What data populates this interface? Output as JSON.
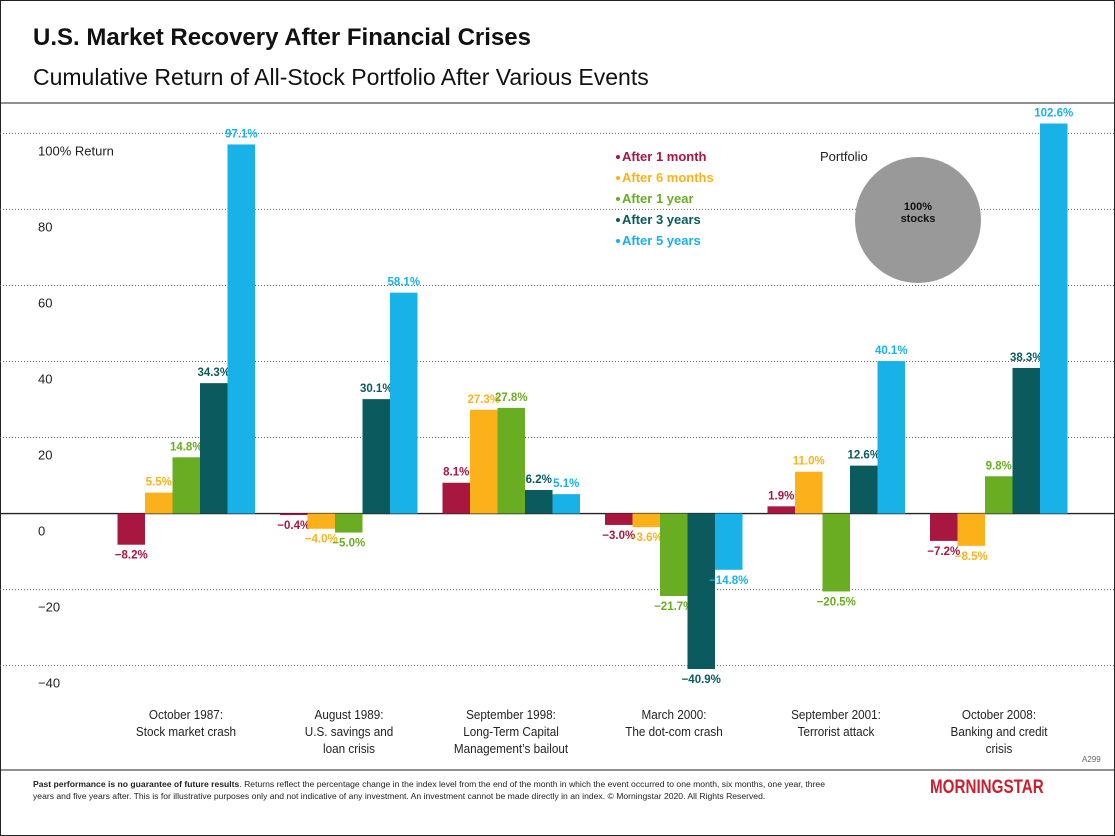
{
  "chart_data": {
    "type": "bar",
    "title": "U.S. Market Recovery After Financial Crises",
    "subtitle": "Cumulative Return of All-Stock Portfolio After Various Events",
    "categories": [
      "October 1987:\nStock market crash",
      "August 1989:\nU.S. savings and\nloan crisis",
      "September 1998:\nLong-Term Capital\nManagement’s bailout",
      "March 2000:\nThe dot-com crash",
      "September 2001:\nTerrorist attack",
      "October 2008:\nBanking and credit\ncrisis"
    ],
    "series": [
      {
        "name": "After 1 month",
        "color": "#a8173f",
        "values": [
          -8.2,
          -0.4,
          8.1,
          -3.0,
          1.9,
          -7.2
        ],
        "value_labels": [
          "−8.2%",
          "−0.4%",
          "8.1%",
          "−3.0%",
          "1.9%",
          "−7.2%"
        ]
      },
      {
        "name": "After 6 months",
        "color": "#fbb21a",
        "values": [
          5.5,
          -4.0,
          27.3,
          -3.6,
          11.0,
          -8.5
        ],
        "value_labels": [
          "5.5%",
          "−4.0%",
          "27.3%",
          "−3.6%",
          "11.0%",
          "−8.5%"
        ]
      },
      {
        "name": "After 1 year",
        "color": "#69ad22",
        "values": [
          14.8,
          -5.0,
          27.8,
          -21.7,
          -20.5,
          9.8
        ],
        "value_labels": [
          "14.8%",
          "−5.0%",
          "27.8%",
          "−21.7%",
          "−20.5%",
          "9.8%"
        ]
      },
      {
        "name": "After 3 years",
        "color": "#0b5a5e",
        "values": [
          34.3,
          30.1,
          6.2,
          -40.9,
          12.6,
          38.3
        ],
        "value_labels": [
          "34.3%",
          "30.1%",
          "6.2%",
          "−40.9%",
          "12.6%",
          "38.3%"
        ]
      },
      {
        "name": "After 5 years",
        "color": "#18b1e8",
        "values": [
          97.1,
          58.1,
          5.1,
          -14.8,
          40.1,
          102.6
        ],
        "value_labels": [
          "97.1%",
          "58.1%",
          "5.1%",
          "−14.8%",
          "40.1%",
          "102.6%"
        ]
      }
    ],
    "ylim": [
      -48,
      108
    ],
    "yticks": [
      {
        "value": 100,
        "label": "100% Return"
      },
      80,
      60,
      40,
      20,
      0,
      {
        "value": -20,
        "label": "−20"
      },
      {
        "value": -40,
        "label": "−40"
      }
    ],
    "grid": true,
    "portfolio_label": "Portfolio",
    "portfolio_text": [
      "100%",
      "stocks"
    ],
    "code": "A299",
    "footnote_bold": "Past performance is no guarantee of future results",
    "footnote": ". Returns reflect the percentage change in the index level from the end of the month in which the event occurred to one month, six months, one year, three years and five years after. This is for illustrative purposes only and not indicative of any investment. An investment cannot be made directly in an index. © Morningstar 2020. All Rights Reserved.",
    "logo": "MORNINGSTAR"
  }
}
